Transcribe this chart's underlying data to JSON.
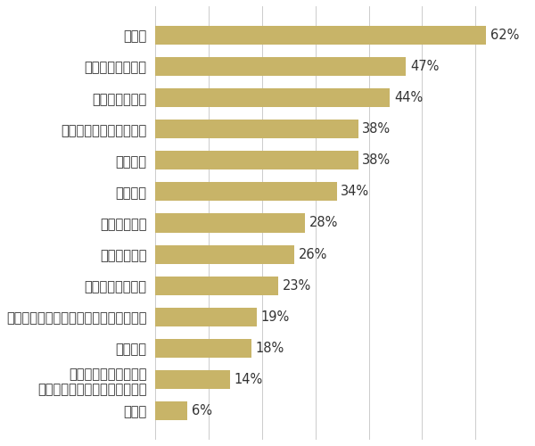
{
  "categories": [
    "その他",
    "勤務スタイルの自由度\n（フレックス、在宅勤務など）",
    "雇用形態",
    "自社の商品・サービスに誇りを持てない",
    "福利厚生の充実度",
    "仕事の裁量度",
    "休日休暇日数",
    "勤務時間",
    "評価制度",
    "仕事におもしろみがない",
    "人間関係の悪さ",
    "成長しづらい環境",
    "給与額"
  ],
  "values": [
    6,
    14,
    18,
    19,
    23,
    26,
    28,
    34,
    38,
    38,
    44,
    47,
    62
  ],
  "bar_color": "#C8B468",
  "background_color": "#FFFFFF",
  "text_color": "#333333",
  "label_fontsize": 10.5,
  "value_fontsize": 10.5,
  "xlim": [
    0,
    70
  ],
  "grid_color": "#CCCCCC"
}
